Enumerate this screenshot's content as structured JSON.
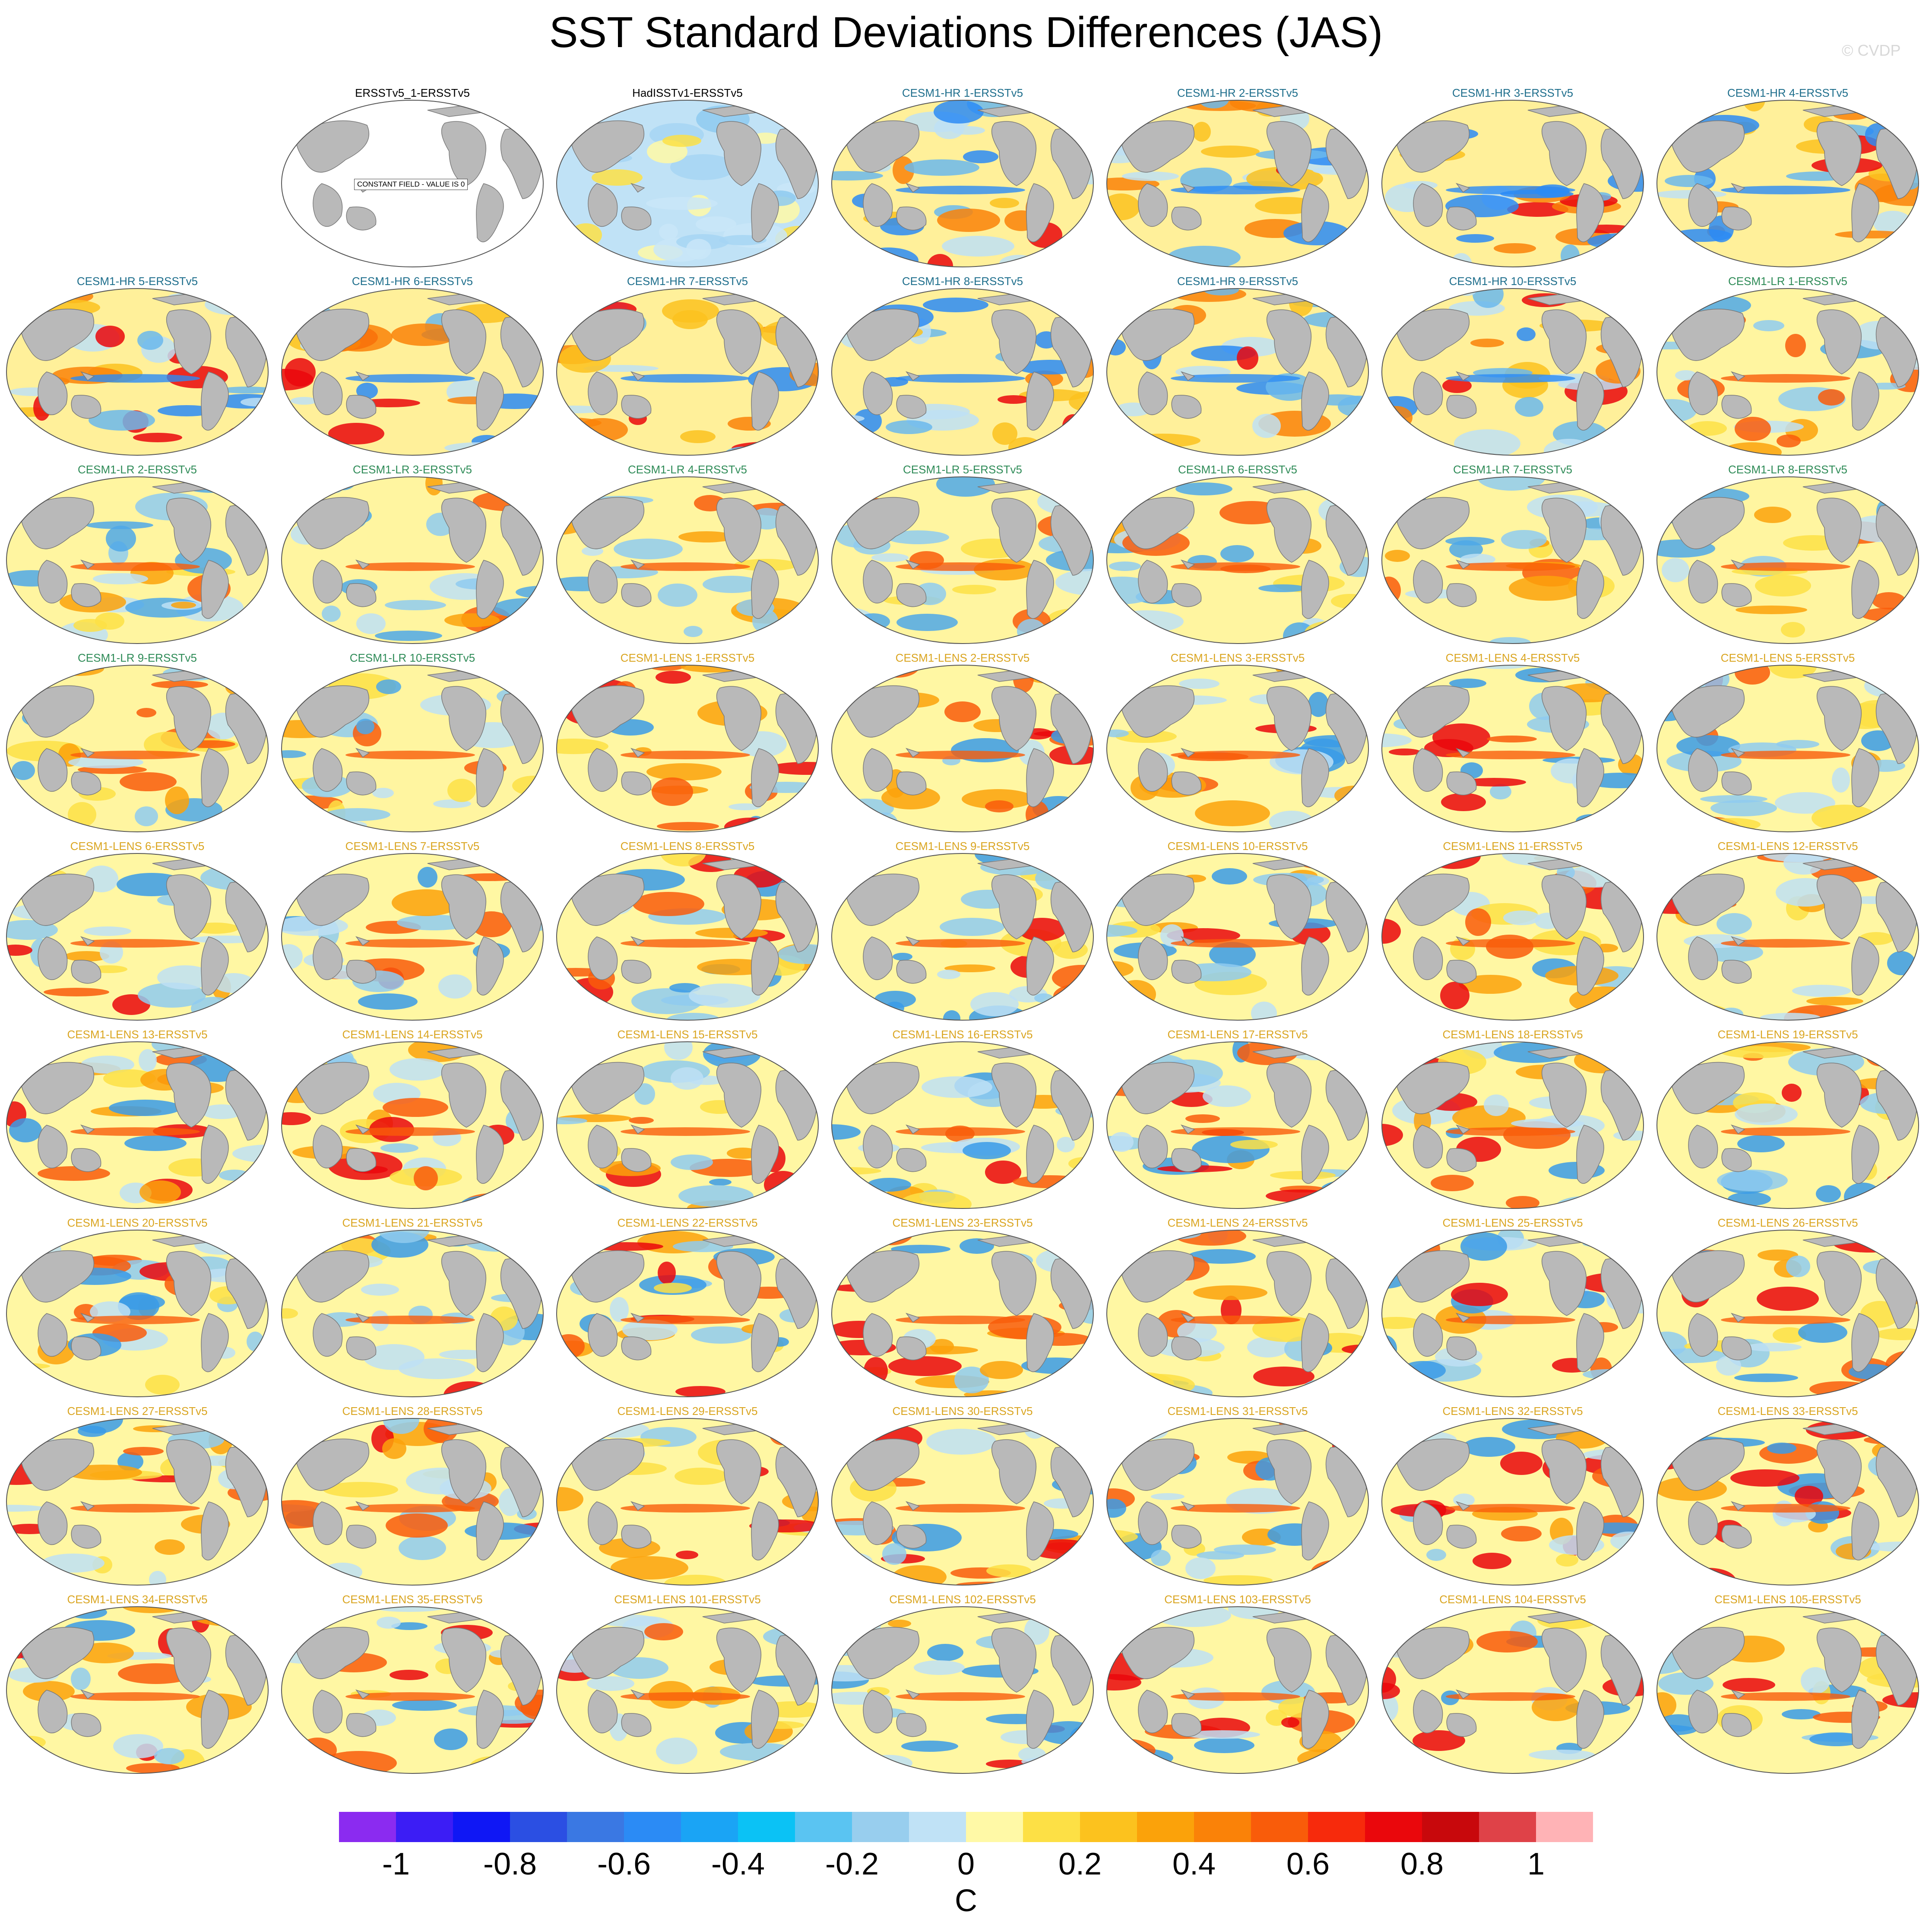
{
  "title": "SST Standard Deviations Differences (JAS)",
  "credit": "© CVDP",
  "colorbar": {
    "colors": [
      "#8B2BF0",
      "#3C1DF5",
      "#0F17F5",
      "#2B4FE3",
      "#3A78E3",
      "#2B8BF5",
      "#1AA4F5",
      "#0BC2F5",
      "#5AC4F2",
      "#98CEEE",
      "#C0E2F6",
      "#FFF9A6",
      "#FDE045",
      "#FCC21E",
      "#FBA20A",
      "#FA8208",
      "#F95C0A",
      "#F72A0C",
      "#EA070C",
      "#C8080C",
      "#DF4248",
      "#FFB3B6"
    ],
    "ticks": [
      "-1",
      "-0.8",
      "-0.6",
      "-0.4",
      "-0.2",
      "0",
      "0.2",
      "0.4",
      "0.6",
      "0.8",
      "1"
    ],
    "units": "C"
  },
  "panels": [
    {
      "label": "ERSSTv5_1-ERSSTv5",
      "group": "obs",
      "note": "CONSTANT FIELD - VALUE IS 0"
    },
    {
      "label": "HadISSTv1-ERSSTv5",
      "group": "obs"
    },
    {
      "label": "CESM1-HR 1-ERSSTv5",
      "group": "hr"
    },
    {
      "label": "CESM1-HR 2-ERSSTv5",
      "group": "hr"
    },
    {
      "label": "CESM1-HR 3-ERSSTv5",
      "group": "hr"
    },
    {
      "label": "CESM1-HR 4-ERSSTv5",
      "group": "hr"
    },
    {
      "label": "CESM1-HR 5-ERSSTv5",
      "group": "hr"
    },
    {
      "label": "CESM1-HR 6-ERSSTv5",
      "group": "hr"
    },
    {
      "label": "CESM1-HR 7-ERSSTv5",
      "group": "hr"
    },
    {
      "label": "CESM1-HR 8-ERSSTv5",
      "group": "hr"
    },
    {
      "label": "CESM1-HR 9-ERSSTv5",
      "group": "hr"
    },
    {
      "label": "CESM1-HR 10-ERSSTv5",
      "group": "hr"
    },
    {
      "label": "CESM1-LR 1-ERSSTv5",
      "group": "lr"
    },
    {
      "label": "CESM1-LR 2-ERSSTv5",
      "group": "lr"
    },
    {
      "label": "CESM1-LR 3-ERSSTv5",
      "group": "lr"
    },
    {
      "label": "CESM1-LR 4-ERSSTv5",
      "group": "lr"
    },
    {
      "label": "CESM1-LR 5-ERSSTv5",
      "group": "lr"
    },
    {
      "label": "CESM1-LR 6-ERSSTv5",
      "group": "lr"
    },
    {
      "label": "CESM1-LR 7-ERSSTv5",
      "group": "lr"
    },
    {
      "label": "CESM1-LR 8-ERSSTv5",
      "group": "lr"
    },
    {
      "label": "CESM1-LR 9-ERSSTv5",
      "group": "lr"
    },
    {
      "label": "CESM1-LR 10-ERSSTv5",
      "group": "lr"
    },
    {
      "label": "CESM1-LENS 1-ERSSTv5",
      "group": "lens"
    },
    {
      "label": "CESM1-LENS 2-ERSSTv5",
      "group": "lens"
    },
    {
      "label": "CESM1-LENS 3-ERSSTv5",
      "group": "lens"
    },
    {
      "label": "CESM1-LENS 4-ERSSTv5",
      "group": "lens"
    },
    {
      "label": "CESM1-LENS 5-ERSSTv5",
      "group": "lens"
    },
    {
      "label": "CESM1-LENS 6-ERSSTv5",
      "group": "lens"
    },
    {
      "label": "CESM1-LENS 7-ERSSTv5",
      "group": "lens"
    },
    {
      "label": "CESM1-LENS 8-ERSSTv5",
      "group": "lens"
    },
    {
      "label": "CESM1-LENS 9-ERSSTv5",
      "group": "lens"
    },
    {
      "label": "CESM1-LENS 10-ERSSTv5",
      "group": "lens"
    },
    {
      "label": "CESM1-LENS 11-ERSSTv5",
      "group": "lens"
    },
    {
      "label": "CESM1-LENS 12-ERSSTv5",
      "group": "lens"
    },
    {
      "label": "CESM1-LENS 13-ERSSTv5",
      "group": "lens"
    },
    {
      "label": "CESM1-LENS 14-ERSSTv5",
      "group": "lens"
    },
    {
      "label": "CESM1-LENS 15-ERSSTv5",
      "group": "lens"
    },
    {
      "label": "CESM1-LENS 16-ERSSTv5",
      "group": "lens"
    },
    {
      "label": "CESM1-LENS 17-ERSSTv5",
      "group": "lens"
    },
    {
      "label": "CESM1-LENS 18-ERSSTv5",
      "group": "lens"
    },
    {
      "label": "CESM1-LENS 19-ERSSTv5",
      "group": "lens"
    },
    {
      "label": "CESM1-LENS 20-ERSSTv5",
      "group": "lens"
    },
    {
      "label": "CESM1-LENS 21-ERSSTv5",
      "group": "lens"
    },
    {
      "label": "CESM1-LENS 22-ERSSTv5",
      "group": "lens"
    },
    {
      "label": "CESM1-LENS 23-ERSSTv5",
      "group": "lens"
    },
    {
      "label": "CESM1-LENS 24-ERSSTv5",
      "group": "lens"
    },
    {
      "label": "CESM1-LENS 25-ERSSTv5",
      "group": "lens"
    },
    {
      "label": "CESM1-LENS 26-ERSSTv5",
      "group": "lens"
    },
    {
      "label": "CESM1-LENS 27-ERSSTv5",
      "group": "lens"
    },
    {
      "label": "CESM1-LENS 28-ERSSTv5",
      "group": "lens"
    },
    {
      "label": "CESM1-LENS 29-ERSSTv5",
      "group": "lens"
    },
    {
      "label": "CESM1-LENS 30-ERSSTv5",
      "group": "lens"
    },
    {
      "label": "CESM1-LENS 31-ERSSTv5",
      "group": "lens"
    },
    {
      "label": "CESM1-LENS 32-ERSSTv5",
      "group": "lens"
    },
    {
      "label": "CESM1-LENS 33-ERSSTv5",
      "group": "lens"
    },
    {
      "label": "CESM1-LENS 34-ERSSTv5",
      "group": "lens"
    },
    {
      "label": "CESM1-LENS 35-ERSSTv5",
      "group": "lens"
    },
    {
      "label": "CESM1-LENS 101-ERSSTv5",
      "group": "lens"
    },
    {
      "label": "CESM1-LENS 102-ERSSTv5",
      "group": "lens"
    },
    {
      "label": "CESM1-LENS 103-ERSSTv5",
      "group": "lens"
    },
    {
      "label": "CESM1-LENS 104-ERSSTv5",
      "group": "lens"
    },
    {
      "label": "CESM1-LENS 105-ERSSTv5",
      "group": "lens"
    }
  ],
  "group_colors": {
    "obs": "#000000",
    "hr": "#1E6E8C",
    "lr": "#2E8B57",
    "lens": "#DAA520"
  }
}
